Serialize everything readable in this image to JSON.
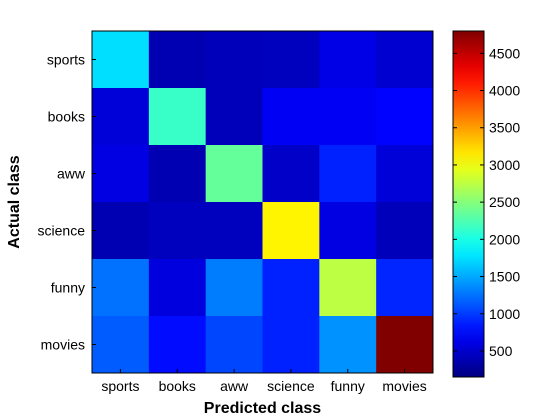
{
  "chart_data": {
    "type": "heatmap",
    "title": "",
    "xlabel": "Predicted class",
    "ylabel": "Actual class",
    "x_categories": [
      "sports",
      "books",
      "aww",
      "science",
      "funny",
      "movies"
    ],
    "y_categories": [
      "sports",
      "books",
      "aww",
      "science",
      "funny",
      "movies"
    ],
    "values": [
      [
        1750,
        380,
        420,
        440,
        620,
        520
      ],
      [
        560,
        2150,
        420,
        680,
        680,
        740
      ],
      [
        600,
        380,
        2350,
        480,
        880,
        560
      ],
      [
        380,
        440,
        440,
        3100,
        600,
        420
      ],
      [
        1250,
        580,
        1300,
        880,
        2750,
        900
      ],
      [
        1150,
        780,
        1050,
        880,
        1400,
        4800
      ]
    ],
    "colorbar": {
      "colormap": "jet",
      "range": [
        150,
        4800
      ],
      "ticks": [
        500,
        1000,
        1500,
        2000,
        2500,
        3000,
        3500,
        4000,
        4500
      ]
    },
    "grid": false
  }
}
